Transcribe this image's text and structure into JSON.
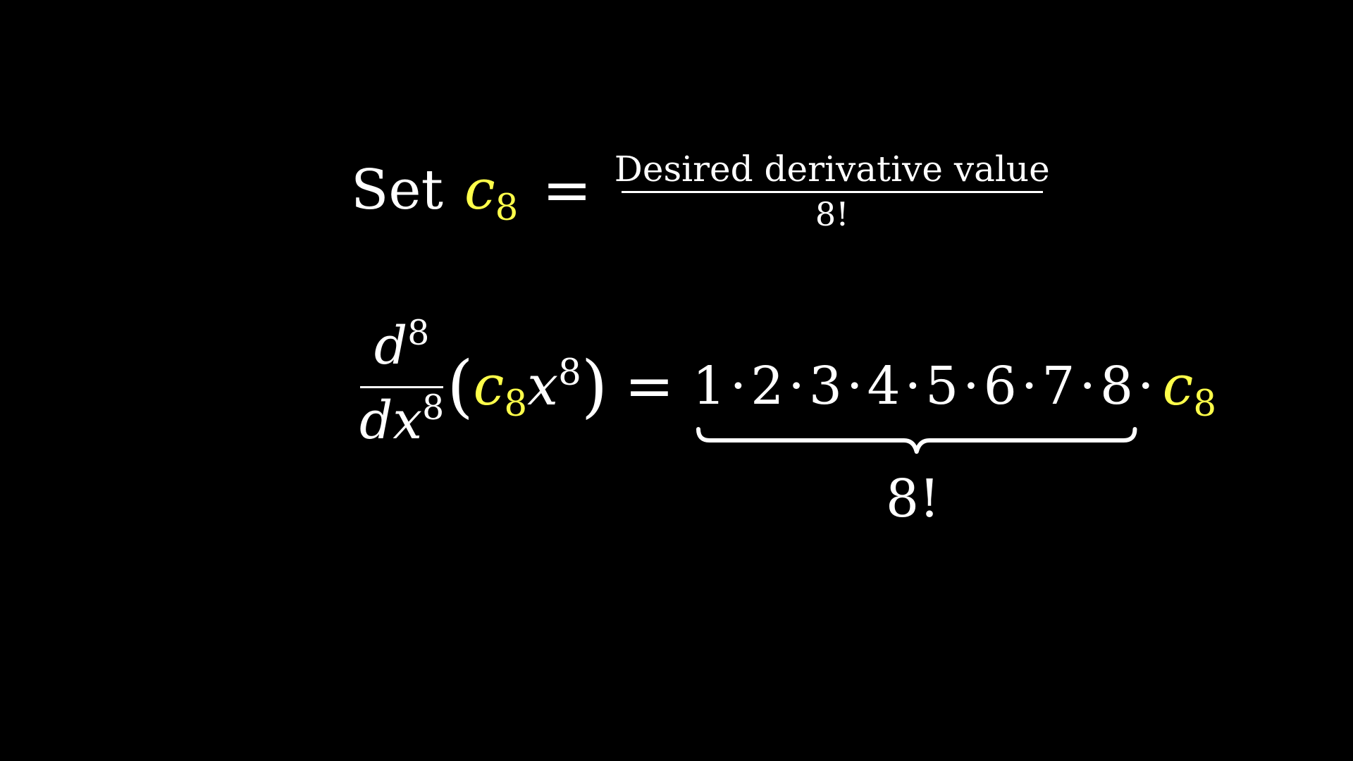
{
  "colors": {
    "background": "#000000",
    "text": "#ffffff",
    "highlight": "#ffff4a"
  },
  "line1": {
    "set_word": "Set",
    "c_symbol": "c",
    "c_subscript": "8",
    "equals": "=",
    "numerator": "Desired derivative value",
    "denominator": "8!"
  },
  "line2": {
    "d_numerator": "d",
    "d_numerator_exp": "8",
    "d_denominator": "dx",
    "d_denominator_exp": "8",
    "open_paren": "(",
    "c_symbol": "c",
    "c_subscript": "8",
    "x_symbol": "x",
    "x_exp": "8",
    "close_paren": ")",
    "equals": "=",
    "factors": [
      "1",
      "2",
      "3",
      "4",
      "5",
      "6",
      "7",
      "8"
    ],
    "dot": "·",
    "tail_c_symbol": "c",
    "tail_c_subscript": "8",
    "brace_label": "8!"
  }
}
